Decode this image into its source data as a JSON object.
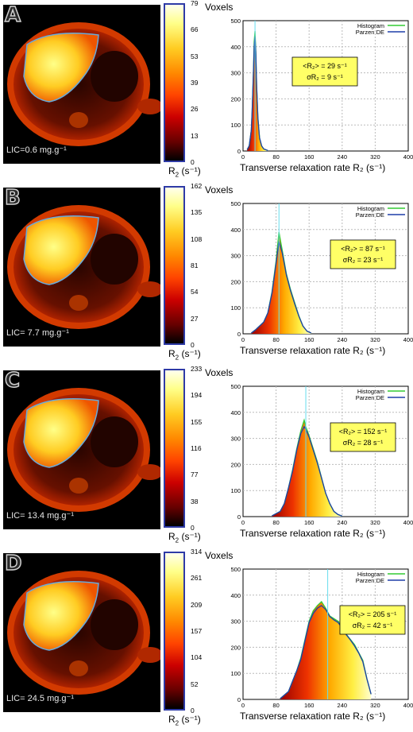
{
  "colors": {
    "colorbar_border": "#2e3aa6",
    "histogram": "#33cc33",
    "parzen": "#1f3fa8",
    "mean_line": "#66ddee",
    "stats_box": "#ffff66"
  },
  "panels": [
    {
      "letter": "A",
      "lic": "LIC=0.6 mg.g⁻¹",
      "colorbar_ticks": [
        "79",
        "66",
        "53",
        "39",
        "26",
        "13",
        "0"
      ],
      "colorbar_max": 79,
      "r2_label_main": "R",
      "r2_label_sub": "2",
      "r2_label_unit": " (s⁻¹)",
      "voxels": "Voxels",
      "mean_text": "<R₂> = 29 s⁻¹",
      "sigma_text": "σR₂ = 9 s⁻¹",
      "xlabel": "Transverse relaxation rate R₂ (s⁻¹)"
    },
    {
      "letter": "B",
      "lic": "LIC= 7.7 mg.g⁻¹",
      "colorbar_ticks": [
        "162",
        "135",
        "108",
        "81",
        "54",
        "27",
        "0"
      ],
      "colorbar_max": 162,
      "r2_label_main": "R",
      "r2_label_sub": "2",
      "r2_label_unit": " (s⁻¹)",
      "voxels": "Voxels",
      "mean_text": "<R₂> = 87 s⁻¹",
      "sigma_text": "σR₂ = 23 s⁻¹",
      "xlabel": "Transverse relaxation rate R₂ (s⁻¹)"
    },
    {
      "letter": "C",
      "lic": "LIC= 13.4 mg.g⁻¹",
      "colorbar_ticks": [
        "233",
        "194",
        "155",
        "116",
        "77",
        "38",
        "0"
      ],
      "colorbar_max": 233,
      "r2_label_main": "R",
      "r2_label_sub": "2",
      "r2_label_unit": " (s⁻¹)",
      "voxels": "Voxels",
      "mean_text": "<R₂> = 152 s⁻¹",
      "sigma_text": "σR₂ = 28 s⁻¹",
      "xlabel": "Transverse relaxation rate R₂ (s⁻¹)"
    },
    {
      "letter": "D",
      "lic": "LIC= 24.5 mg.g⁻¹",
      "colorbar_ticks": [
        "314",
        "261",
        "209",
        "157",
        "104",
        "52",
        "0"
      ],
      "colorbar_max": 314,
      "r2_label_main": "R",
      "r2_label_sub": "2",
      "r2_label_unit": " (s⁻¹)",
      "voxels": "Voxels",
      "mean_text": "<R₂> = 205 s⁻¹",
      "sigma_text": "σR₂ = 42 s⁻¹",
      "xlabel": "Transverse relaxation rate R₂ (s⁻¹)"
    }
  ],
  "chart_data": [
    {
      "type": "area",
      "title": "",
      "xlabel": "Transverse relaxation rate R₂ (s⁻¹)",
      "ylabel": "Voxels",
      "xlim": [
        0,
        400
      ],
      "ylim": [
        0,
        500
      ],
      "x_ticks": [
        0,
        80,
        160,
        240,
        320,
        400
      ],
      "y_ticks": [
        0,
        100,
        200,
        300,
        400,
        500
      ],
      "series": [
        {
          "name": "Histogram",
          "x": [
            10,
            15,
            20,
            22,
            25,
            27,
            29,
            31,
            33,
            36,
            40,
            45,
            50,
            60
          ],
          "y": [
            5,
            20,
            80,
            150,
            300,
            420,
            460,
            380,
            250,
            130,
            50,
            20,
            8,
            2
          ]
        },
        {
          "name": "Parzen DE",
          "x": [
            10,
            15,
            20,
            22,
            25,
            27,
            29,
            31,
            33,
            36,
            40,
            45,
            50,
            60
          ],
          "y": [
            5,
            20,
            80,
            150,
            290,
            400,
            440,
            370,
            245,
            125,
            50,
            20,
            8,
            2
          ]
        }
      ],
      "mean": 29,
      "sigma": 9
    },
    {
      "type": "area",
      "title": "",
      "xlabel": "Transverse relaxation rate R₂ (s⁻¹)",
      "ylabel": "Voxels",
      "xlim": [
        0,
        400
      ],
      "ylim": [
        0,
        500
      ],
      "x_ticks": [
        0,
        80,
        160,
        240,
        320,
        400
      ],
      "y_ticks": [
        0,
        100,
        200,
        300,
        400,
        500
      ],
      "series": [
        {
          "name": "Histogram",
          "x": [
            20,
            30,
            40,
            50,
            60,
            70,
            80,
            87,
            95,
            105,
            115,
            125,
            135,
            145,
            155,
            165
          ],
          "y": [
            3,
            15,
            30,
            45,
            80,
            160,
            280,
            390,
            320,
            230,
            170,
            120,
            70,
            30,
            10,
            3
          ]
        },
        {
          "name": "Parzen DE",
          "x": [
            20,
            30,
            40,
            50,
            60,
            70,
            80,
            87,
            95,
            105,
            115,
            125,
            135,
            145,
            155,
            165
          ],
          "y": [
            3,
            15,
            30,
            45,
            80,
            155,
            270,
            355,
            310,
            225,
            165,
            115,
            68,
            30,
            10,
            3
          ]
        }
      ],
      "mean": 87,
      "sigma": 23
    },
    {
      "type": "area",
      "title": "",
      "xlabel": "Transverse relaxation rate R₂ (s⁻¹)",
      "ylabel": "Voxels",
      "xlim": [
        0,
        400
      ],
      "ylim": [
        0,
        500
      ],
      "x_ticks": [
        0,
        80,
        160,
        240,
        320,
        400
      ],
      "y_ticks": [
        0,
        100,
        200,
        300,
        400,
        500
      ],
      "series": [
        {
          "name": "Histogram",
          "x": [
            70,
            90,
            100,
            110,
            120,
            130,
            140,
            148,
            152,
            160,
            170,
            180,
            190,
            200,
            210,
            220,
            230,
            240
          ],
          "y": [
            3,
            20,
            50,
            110,
            180,
            260,
            330,
            370,
            345,
            310,
            260,
            210,
            150,
            90,
            50,
            20,
            8,
            2
          ]
        },
        {
          "name": "Parzen DE",
          "x": [
            70,
            90,
            100,
            110,
            120,
            130,
            140,
            148,
            152,
            160,
            170,
            180,
            190,
            200,
            210,
            220,
            230,
            240
          ],
          "y": [
            3,
            20,
            50,
            110,
            175,
            255,
            320,
            345,
            335,
            305,
            255,
            205,
            148,
            90,
            50,
            20,
            8,
            2
          ]
        }
      ],
      "mean": 152,
      "sigma": 28
    },
    {
      "type": "area",
      "title": "",
      "xlabel": "Transverse relaxation rate R₂ (s⁻¹)",
      "ylabel": "Voxels",
      "xlim": [
        0,
        400
      ],
      "ylim": [
        0,
        500
      ],
      "x_ticks": [
        0,
        80,
        160,
        240,
        320,
        400
      ],
      "y_ticks": [
        0,
        100,
        200,
        300,
        400,
        500
      ],
      "series": [
        {
          "name": "Histogram",
          "x": [
            90,
            110,
            120,
            130,
            140,
            150,
            160,
            170,
            180,
            190,
            200,
            210,
            220,
            230,
            240,
            250,
            260,
            270,
            280,
            290,
            300,
            310
          ],
          "y": [
            3,
            30,
            70,
            110,
            160,
            230,
            300,
            340,
            360,
            375,
            350,
            320,
            310,
            300,
            280,
            250,
            230,
            210,
            180,
            150,
            80,
            20
          ]
        },
        {
          "name": "Parzen DE",
          "x": [
            90,
            110,
            120,
            130,
            140,
            150,
            160,
            170,
            180,
            190,
            200,
            210,
            220,
            230,
            240,
            250,
            260,
            270,
            280,
            290,
            300,
            310
          ],
          "y": [
            3,
            30,
            70,
            110,
            155,
            225,
            295,
            330,
            350,
            360,
            345,
            318,
            305,
            295,
            275,
            248,
            228,
            205,
            178,
            145,
            78,
            20
          ]
        }
      ],
      "mean": 205,
      "sigma": 42
    }
  ]
}
